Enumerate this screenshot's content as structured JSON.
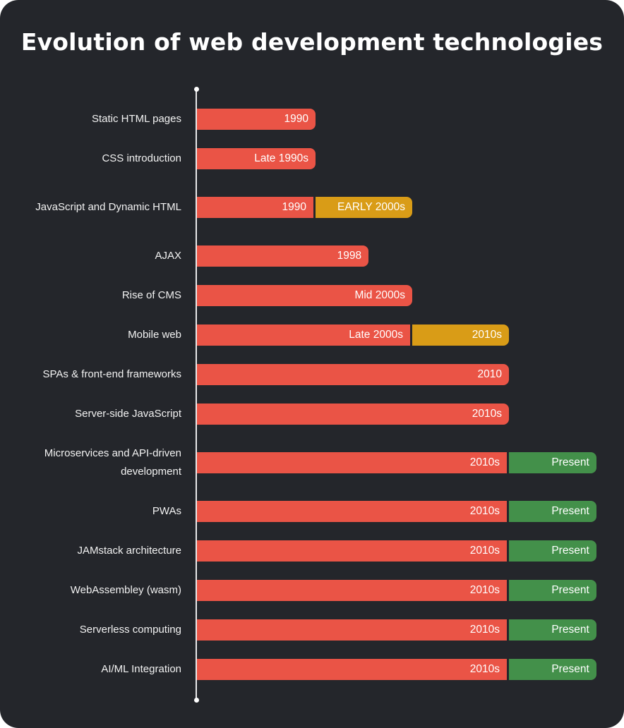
{
  "colors": {
    "background": "#24262b",
    "axis": "#e9e9ea",
    "red": "#ea5446",
    "yellow": "#d99c17",
    "green": "#43904a",
    "text": "#ffffff"
  },
  "chart_data": {
    "type": "bar",
    "orientation": "horizontal-timeline",
    "title": "Evolution of web development technologies",
    "xlabel": "",
    "ylabel": "",
    "grid": false,
    "legend": "none",
    "rows": [
      {
        "label": "Static HTML pages",
        "segments": [
          {
            "text": "1990",
            "span": 1.9,
            "color": "red"
          }
        ]
      },
      {
        "label": "CSS introduction",
        "segments": [
          {
            "text": "Late 1990s",
            "span": 1.9,
            "color": "red"
          }
        ]
      },
      {
        "label": "JavaScript and Dynamic HTML",
        "segments": [
          {
            "text": "1990",
            "span": 1.9,
            "color": "red"
          },
          {
            "text": "EARLY 2000s",
            "span": 1.55,
            "color": "yellow"
          }
        ]
      },
      {
        "label": "AJAX",
        "segments": [
          {
            "text": "1998",
            "span": 2.75,
            "color": "red"
          }
        ]
      },
      {
        "label": "Rise of CMS",
        "segments": [
          {
            "text": "Mid 2000s",
            "span": 3.45,
            "color": "red"
          }
        ]
      },
      {
        "label": "Mobile web",
        "segments": [
          {
            "text": "Late 2000s",
            "span": 3.45,
            "color": "red"
          },
          {
            "text": "2010s",
            "span": 1.55,
            "color": "yellow"
          }
        ]
      },
      {
        "label": "SPAs & front-end frameworks",
        "segments": [
          {
            "text": "2010",
            "span": 5.0,
            "color": "red"
          }
        ]
      },
      {
        "label": "Server-side JavaScript",
        "segments": [
          {
            "text": "2010s",
            "span": 5.0,
            "color": "red"
          }
        ]
      },
      {
        "label": "Microservices and API-driven development",
        "segments": [
          {
            "text": "2010s",
            "span": 5.0,
            "color": "red"
          },
          {
            "text": "Present",
            "span": 1.4,
            "color": "green"
          }
        ]
      },
      {
        "label": "PWAs",
        "segments": [
          {
            "text": "2010s",
            "span": 5.0,
            "color": "red"
          },
          {
            "text": "Present",
            "span": 1.4,
            "color": "green"
          }
        ]
      },
      {
        "label": "JAMstack architecture",
        "segments": [
          {
            "text": "2010s",
            "span": 5.0,
            "color": "red"
          },
          {
            "text": "Present",
            "span": 1.4,
            "color": "green"
          }
        ]
      },
      {
        "label": "WebAssembley (wasm)",
        "segments": [
          {
            "text": "2010s",
            "span": 5.0,
            "color": "red"
          },
          {
            "text": "Present",
            "span": 1.4,
            "color": "green"
          }
        ]
      },
      {
        "label": "Serverless computing",
        "segments": [
          {
            "text": "2010s",
            "span": 5.0,
            "color": "red"
          },
          {
            "text": "Present",
            "span": 1.4,
            "color": "green"
          }
        ]
      },
      {
        "label": "AI/ML Integration",
        "segments": [
          {
            "text": "2010s",
            "span": 5.0,
            "color": "red"
          },
          {
            "text": "Present",
            "span": 1.4,
            "color": "green"
          }
        ]
      }
    ]
  }
}
